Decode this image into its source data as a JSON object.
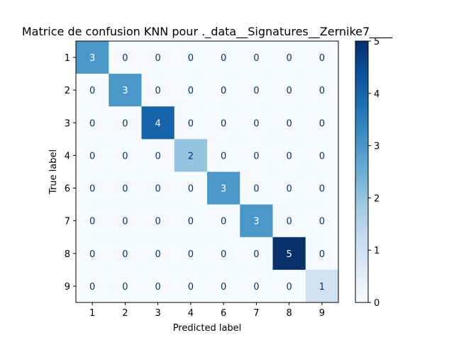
{
  "chart_data": {
    "type": "heatmap",
    "title": "Matrice de confusion KNN pour ._data__Signatures__Zernike7____",
    "xlabel": "Predicted label",
    "ylabel": "True label",
    "x_categories": [
      "1",
      "2",
      "3",
      "4",
      "6",
      "7",
      "8",
      "9"
    ],
    "y_categories": [
      "1",
      "2",
      "3",
      "4",
      "6",
      "7",
      "8",
      "9"
    ],
    "values": [
      [
        3,
        0,
        0,
        0,
        0,
        0,
        0,
        0
      ],
      [
        0,
        3,
        0,
        0,
        0,
        0,
        0,
        0
      ],
      [
        0,
        0,
        4,
        0,
        0,
        0,
        0,
        0
      ],
      [
        0,
        0,
        0,
        2,
        0,
        0,
        0,
        0
      ],
      [
        0,
        0,
        0,
        0,
        3,
        0,
        0,
        0
      ],
      [
        0,
        0,
        0,
        0,
        0,
        3,
        0,
        0
      ],
      [
        0,
        0,
        0,
        0,
        0,
        0,
        5,
        0
      ],
      [
        0,
        0,
        0,
        0,
        0,
        0,
        0,
        1
      ]
    ],
    "colorbar": {
      "min": 0,
      "max": 5,
      "ticks": [
        "0",
        "1",
        "2",
        "3",
        "4",
        "5"
      ]
    },
    "colormap": "Blues",
    "colors": {
      "low": "#f7fbff",
      "high": "#08306b"
    }
  }
}
